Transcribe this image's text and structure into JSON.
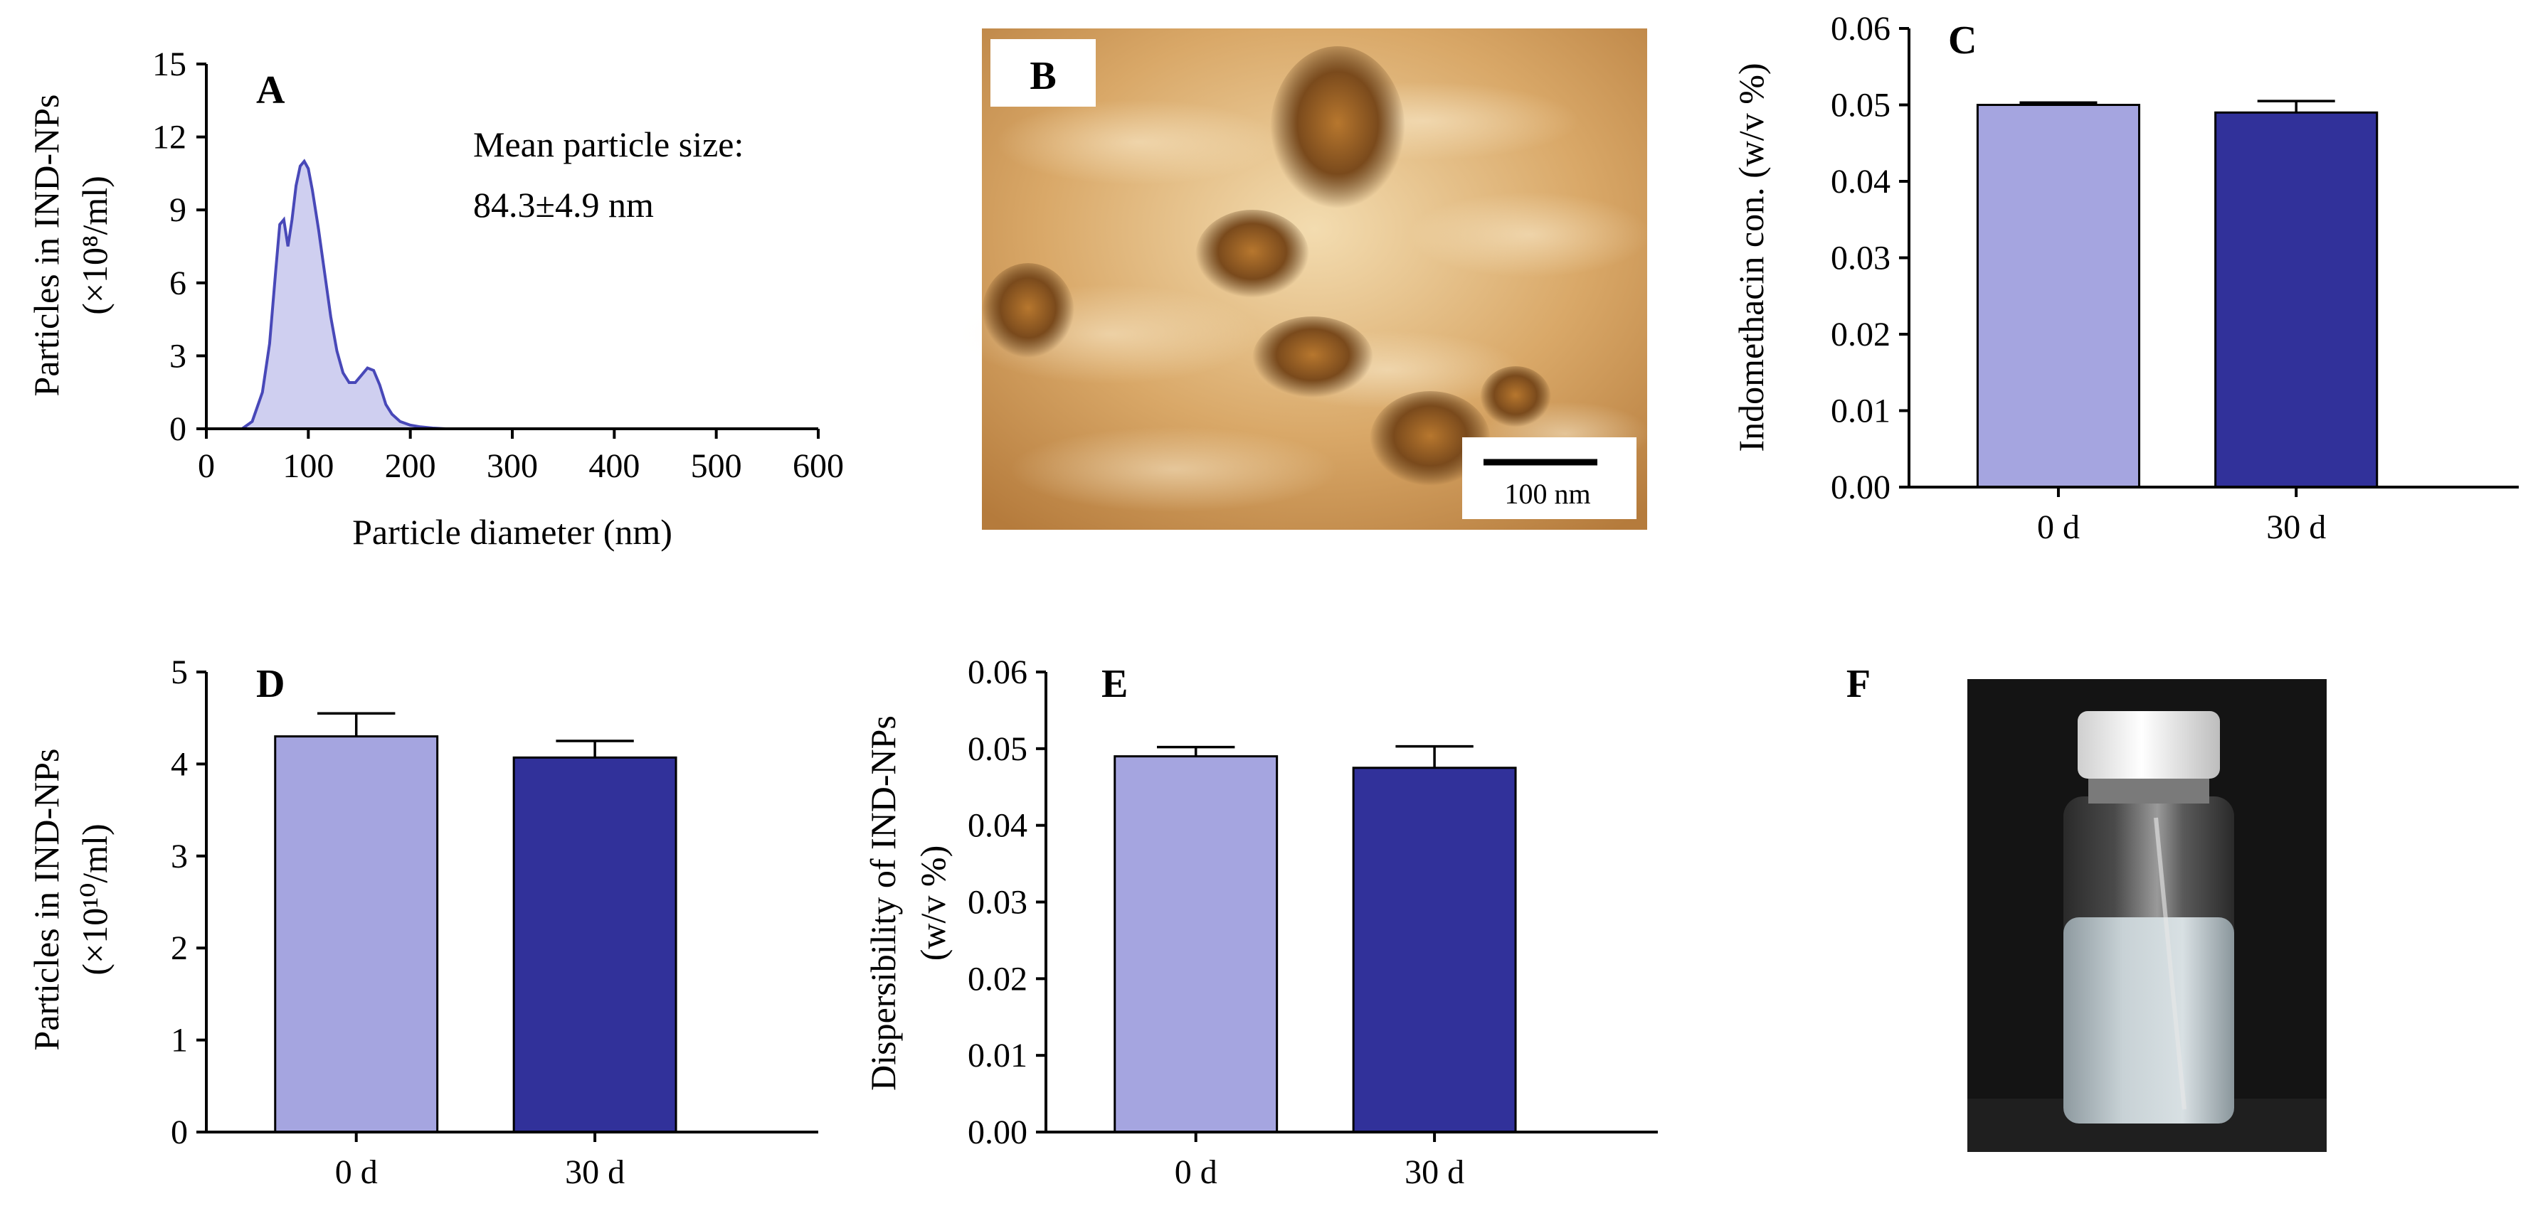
{
  "colors": {
    "bar_0d": "#a5a5e0",
    "bar_30d": "#31319a",
    "curve": "#4848b8",
    "curve_fill": "#cfcff0"
  },
  "chart_data": [
    {
      "panel": "A",
      "type": "area",
      "xlabel": "Particle diameter (nm)",
      "ylabel_line1": "Particles in IND-NPs",
      "ylabel_line2": "(×10⁸/ml)",
      "xlim": [
        0,
        600
      ],
      "ylim": [
        0,
        15
      ],
      "xticks": [
        0,
        100,
        200,
        300,
        400,
        500,
        600
      ],
      "yticks": [
        0,
        3,
        6,
        9,
        12,
        15
      ],
      "annotation_line1": "Mean particle size:",
      "annotation_line2": "84.3±4.9 nm",
      "x": [
        35,
        45,
        55,
        62,
        68,
        72,
        76,
        80,
        84,
        88,
        92,
        96,
        100,
        104,
        110,
        116,
        122,
        128,
        134,
        140,
        146,
        152,
        158,
        164,
        170,
        176,
        182,
        190,
        200,
        210,
        222,
        235
      ],
      "y": [
        0,
        0.3,
        1.5,
        3.5,
        6.5,
        8.4,
        8.6,
        7.5,
        8.6,
        10.0,
        10.8,
        11.0,
        10.7,
        9.8,
        8.2,
        6.4,
        4.6,
        3.2,
        2.3,
        1.9,
        1.9,
        2.2,
        2.5,
        2.4,
        1.8,
        1.0,
        0.6,
        0.3,
        0.15,
        0.08,
        0.03,
        0
      ]
    },
    {
      "panel": "C",
      "type": "bar",
      "categories": [
        "0 d",
        "30 d"
      ],
      "values": [
        0.05,
        0.049
      ],
      "errors": [
        0.0003,
        0.0015
      ],
      "ylabel": "Indomethacin con. (w/v %)",
      "ylim": [
        0,
        0.06
      ],
      "yticks": [
        "0.00",
        "0.01",
        "0.02",
        "0.03",
        "0.04",
        "0.05",
        "0.06"
      ]
    },
    {
      "panel": "D",
      "type": "bar",
      "categories": [
        "0 d",
        "30 d"
      ],
      "values": [
        4.3,
        4.07
      ],
      "errors": [
        0.25,
        0.18
      ],
      "ylabel_line1": "Particles in IND-NPs",
      "ylabel_line2": "(×10¹⁰/ml)",
      "ylim": [
        0,
        5
      ],
      "yticks": [
        "0",
        "1",
        "2",
        "3",
        "4",
        "5"
      ]
    },
    {
      "panel": "E",
      "type": "bar",
      "categories": [
        "0 d",
        "30 d"
      ],
      "values": [
        0.049,
        0.0475
      ],
      "errors": [
        0.0012,
        0.0028
      ],
      "ylabel_line1": "Dispersibility of IND-NPs",
      "ylabel_line2": "(w/v %)",
      "ylim": [
        0,
        0.06
      ],
      "yticks": [
        "0.00",
        "0.01",
        "0.02",
        "0.03",
        "0.04",
        "0.05",
        "0.06"
      ]
    }
  ],
  "panel_b": {
    "letter": "B",
    "scalebar_label": "100 nm"
  },
  "panel_f": {
    "letter": "F"
  }
}
